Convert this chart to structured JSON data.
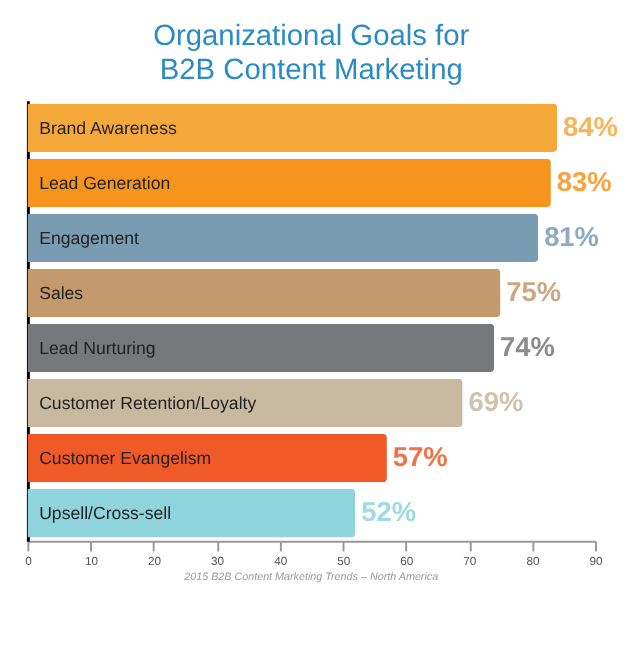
{
  "chart_data": {
    "type": "bar",
    "orientation": "horizontal",
    "title": "Organizational Goals for\nB2B Content Marketing",
    "categories": [
      "Brand Awareness",
      "Lead Generation",
      "Engagement",
      "Sales",
      "Lead Nurturing",
      "Customer Retention/Loyalty",
      "Customer Evangelism",
      "Upsell/Cross-sell"
    ],
    "values": [
      84,
      83,
      81,
      75,
      74,
      69,
      57,
      52
    ],
    "value_labels": [
      "84%",
      "83%",
      "81%",
      "75%",
      "74%",
      "69%",
      "57%",
      "52%"
    ],
    "colors": [
      "#f6a93b",
      "#f7941d",
      "#7a9cb3",
      "#c49a6c",
      "#77787b",
      "#c8b89f",
      "#f05a28",
      "#8fd3dc"
    ],
    "xlim": [
      0,
      90
    ],
    "xticks": [
      0,
      10,
      20,
      30,
      40,
      50,
      60,
      70,
      80,
      90
    ],
    "grid": false,
    "legend": false,
    "annotations": [
      "2015 B2B Content Marketing Trends – North America"
    ]
  }
}
